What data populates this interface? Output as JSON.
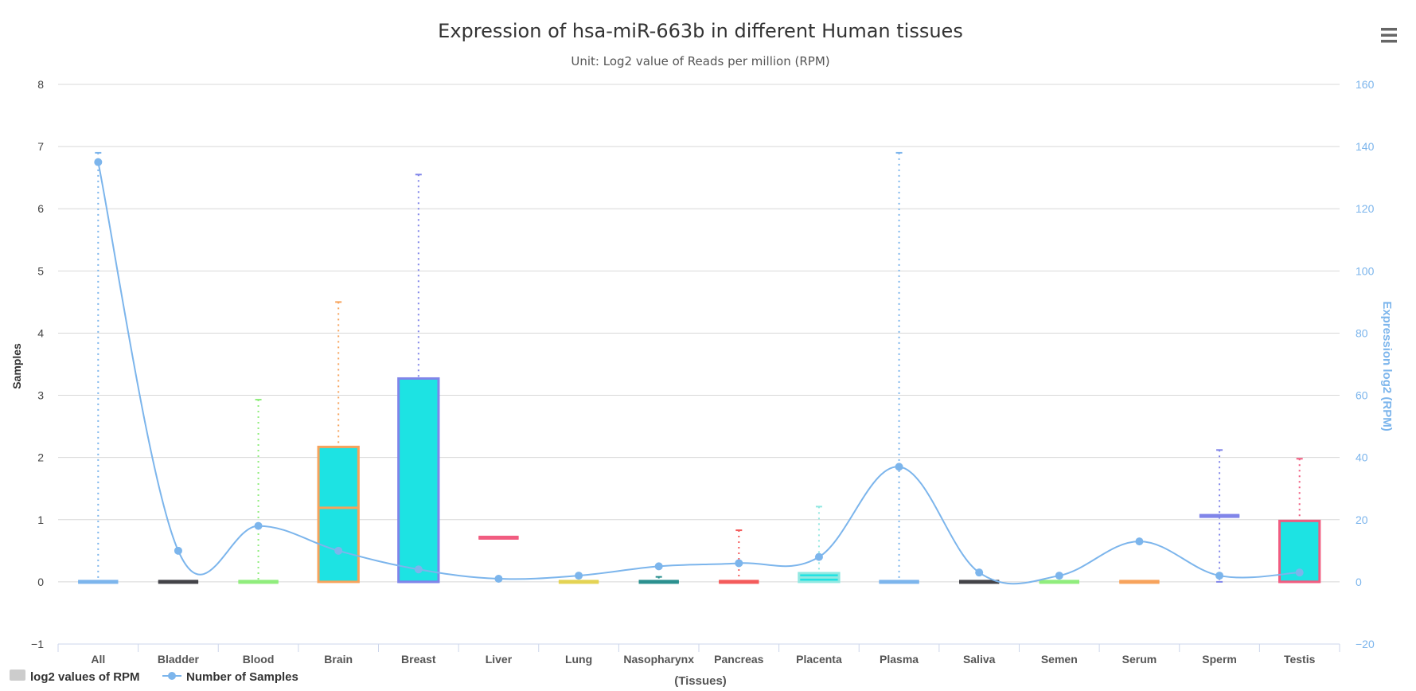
{
  "colors": {
    "box_fill": "#1de3e3",
    "line": "#7cb5ec",
    "grid": "#d8d8d8",
    "axis": "#ccd6eb",
    "legend_box": "#cccccc"
  },
  "menu_icon": "hamburger-menu-icon",
  "chart_data": {
    "type": "boxplot",
    "title": "Expression of hsa-miR-663b in different Human tissues",
    "subtitle": "Unit: Log2 value of Reads per million (RPM)",
    "xlabel": "(Tissues)",
    "ylabel_left": "Samples",
    "ylabel_right": "Expression log2 (RPM)",
    "ylim_left": [
      -1,
      8
    ],
    "yticks_left": [
      "8",
      "7",
      "6",
      "5",
      "4",
      "3",
      "2",
      "1",
      "0",
      "−1"
    ],
    "ylim_right": [
      -20,
      160
    ],
    "yticks_right": [
      "160",
      "140",
      "120",
      "100",
      "80",
      "60",
      "40",
      "20",
      "0",
      "−20"
    ],
    "grid": true,
    "legend_position": "bottom-left",
    "categories": [
      "All",
      "Bladder",
      "Blood",
      "Brain",
      "Breast",
      "Liver",
      "Lung",
      "Nasopharynx",
      "Pancreas",
      "Placenta",
      "Plasma",
      "Saliva",
      "Semen",
      "Serum",
      "Sperm",
      "Testis"
    ],
    "series": [
      {
        "name": "log2 values of RPM",
        "type": "boxplot",
        "boxes": [
          {
            "low": 0,
            "q1": 0,
            "median": 0,
            "q3": 0,
            "high": 6.9,
            "color": "#7cb5ec"
          },
          {
            "low": 0,
            "q1": 0,
            "median": 0,
            "q3": 0,
            "high": 0,
            "color": "#434348"
          },
          {
            "low": 0,
            "q1": 0,
            "median": 0,
            "q3": 0,
            "high": 2.93,
            "color": "#90ed7d"
          },
          {
            "low": 0,
            "q1": 0,
            "median": 1.19,
            "q3": 2.17,
            "high": 4.5,
            "color": "#f7a35c"
          },
          {
            "low": 0,
            "q1": 0,
            "median": 0,
            "q3": 3.27,
            "high": 6.55,
            "color": "#8085e9"
          },
          {
            "low": 0.71,
            "q1": 0.71,
            "median": 0.71,
            "q3": 0.71,
            "high": 0.71,
            "color": "#f15c80"
          },
          {
            "low": 0,
            "q1": 0,
            "median": 0,
            "q3": 0,
            "high": 0,
            "color": "#e4d354"
          },
          {
            "low": 0,
            "q1": 0,
            "median": 0,
            "q3": 0,
            "high": 0.08,
            "color": "#2b908f"
          },
          {
            "low": 0,
            "q1": 0,
            "median": 0,
            "q3": 0,
            "high": 0.83,
            "color": "#f45b5b"
          },
          {
            "low": 0,
            "q1": 0,
            "median": 0.07,
            "q3": 0.14,
            "high": 1.21,
            "color": "#91e8e1"
          },
          {
            "low": 0,
            "q1": 0,
            "median": 0,
            "q3": 0,
            "high": 6.9,
            "color": "#7cb5ec"
          },
          {
            "low": 0,
            "q1": 0,
            "median": 0,
            "q3": 0,
            "high": 0,
            "color": "#434348"
          },
          {
            "low": 0,
            "q1": 0,
            "median": 0,
            "q3": 0,
            "high": 0,
            "color": "#90ed7d"
          },
          {
            "low": 0,
            "q1": 0,
            "median": 0,
            "q3": 0,
            "high": 0,
            "color": "#f7a35c"
          },
          {
            "low": 0,
            "q1": 1.04,
            "median": 1.06,
            "q3": 1.08,
            "high": 2.12,
            "color": "#8085e9"
          },
          {
            "low": 0,
            "q1": 0,
            "median": 0,
            "q3": 0.98,
            "high": 1.98,
            "color": "#f15c80"
          }
        ]
      },
      {
        "name": "Number of Samples",
        "type": "spline",
        "axis": "right",
        "values": [
          135,
          10,
          18,
          10,
          4,
          1,
          2,
          5,
          6,
          8,
          37,
          3,
          2,
          13,
          2,
          3
        ]
      }
    ]
  }
}
